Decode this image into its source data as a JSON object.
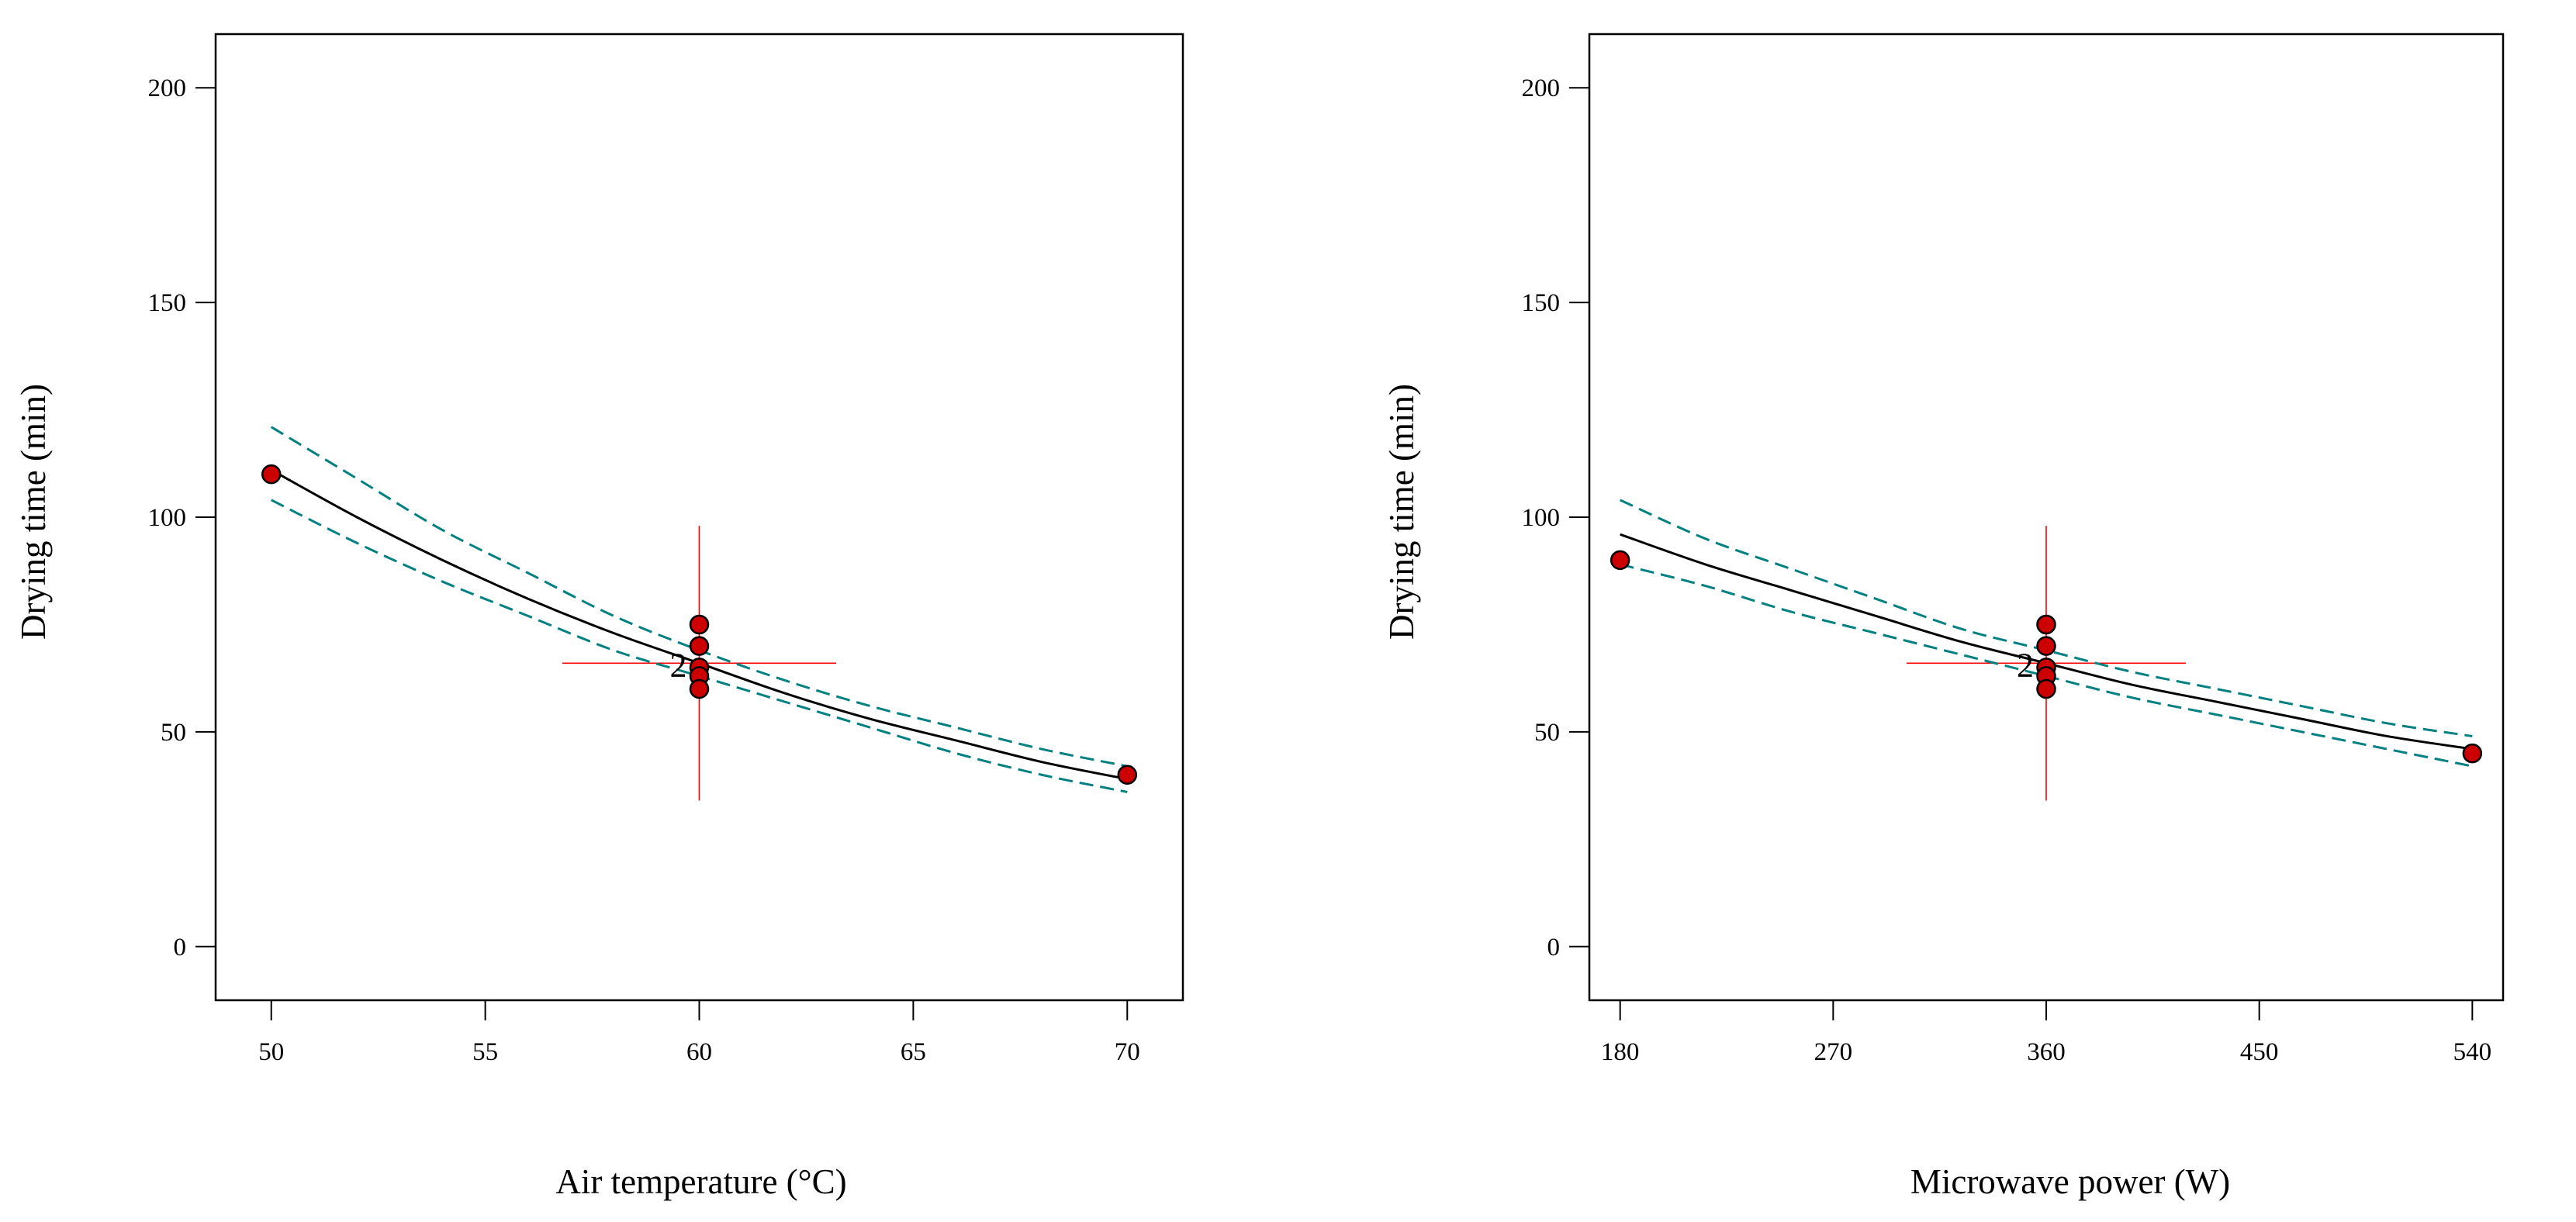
{
  "colors": {
    "fit_line": "#000000",
    "ci_line": "#008080",
    "point_fill": "#cc0000",
    "point_stroke": "#000000",
    "crosshair": "#ff0000"
  },
  "chart_data": [
    {
      "type": "line",
      "title": "",
      "xlabel": "Air temperature (°C)",
      "ylabel": "Drying time (min)",
      "xlim": [
        48.7,
        71.3
      ],
      "ylim": [
        -12.5,
        212.5
      ],
      "xticks": [
        50,
        55,
        60,
        65,
        70
      ],
      "yticks": [
        0,
        50,
        100,
        150,
        200
      ],
      "fit": {
        "name": "Predicted",
        "x": [
          50,
          52,
          54,
          56,
          58,
          60,
          62,
          64,
          66,
          68,
          70
        ],
        "values": [
          111,
          100,
          90,
          81,
          73,
          66,
          59,
          53,
          48,
          43,
          39
        ]
      },
      "ci_upper": {
        "name": "Upper 95% CI",
        "x": [
          50,
          52,
          54,
          56,
          58,
          60,
          62,
          64,
          66,
          68,
          70
        ],
        "values": [
          121,
          109,
          97,
          87,
          77,
          69,
          62,
          56,
          51,
          46,
          42
        ]
      },
      "ci_lower": {
        "name": "Lower 95% CI",
        "x": [
          50,
          52,
          54,
          56,
          58,
          60,
          62,
          64,
          66,
          68,
          70
        ],
        "values": [
          104,
          94,
          85,
          77,
          69,
          63,
          57,
          51,
          45,
          40,
          36
        ]
      },
      "points": {
        "name": "Design points",
        "x": [
          50,
          60,
          60,
          60,
          60,
          60,
          70
        ],
        "values": [
          110,
          75,
          70,
          65,
          63,
          60,
          40
        ]
      },
      "center": {
        "x": 60,
        "y": 66,
        "x_span": [
          56.8,
          63.2
        ],
        "y_span": [
          34,
          98
        ]
      },
      "center_label": "2"
    },
    {
      "type": "line",
      "title": "",
      "xlabel": "Microwave power (W)",
      "ylabel": "Drying time (min)",
      "xlim": [
        167,
        553
      ],
      "ylim": [
        -12.5,
        212.5
      ],
      "xticks": [
        180,
        270,
        360,
        450,
        540
      ],
      "yticks": [
        0,
        50,
        100,
        150,
        200
      ],
      "fit": {
        "name": "Predicted",
        "x": [
          180,
          216,
          252,
          288,
          324,
          360,
          396,
          432,
          468,
          504,
          540
        ],
        "values": [
          96,
          89,
          83,
          77,
          71,
          66,
          61,
          57,
          53,
          49,
          46
        ]
      },
      "ci_upper": {
        "name": "Upper 95% CI",
        "x": [
          180,
          216,
          252,
          288,
          324,
          360,
          396,
          432,
          468,
          504,
          540
        ],
        "values": [
          104,
          95,
          88,
          81,
          74,
          69,
          64,
          60,
          56,
          52,
          49
        ]
      },
      "ci_lower": {
        "name": "Lower 95% CI",
        "x": [
          180,
          216,
          252,
          288,
          324,
          360,
          396,
          432,
          468,
          504,
          540
        ],
        "values": [
          89,
          84,
          78,
          73,
          68,
          63,
          58,
          54,
          50,
          46,
          42
        ]
      },
      "points": {
        "name": "Design points",
        "x": [
          180,
          360,
          360,
          360,
          360,
          360,
          540
        ],
        "values": [
          90,
          75,
          70,
          65,
          63,
          60,
          45
        ]
      },
      "center": {
        "x": 360,
        "y": 66,
        "x_span": [
          301,
          419
        ],
        "y_span": [
          34,
          98
        ]
      },
      "center_label": "2"
    }
  ]
}
